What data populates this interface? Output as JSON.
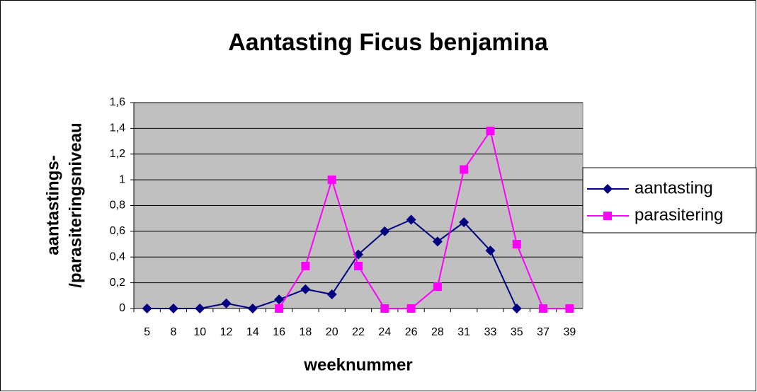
{
  "chart_data": {
    "type": "line",
    "title": "Aantasting Ficus benjamina",
    "x_label": "weeknummer",
    "y_label": [
      "aantastings-",
      "/parasiteringsniveau"
    ],
    "categories": [
      "5",
      "8",
      "10",
      "12",
      "14",
      "16",
      "18",
      "20",
      "22",
      "24",
      "26",
      "28",
      "31",
      "33",
      "35",
      "37",
      "39"
    ],
    "series": [
      {
        "name": "aantasting",
        "color": "#000080",
        "marker": "diamond",
        "values": [
          0,
          0,
          0,
          0.04,
          0,
          0.07,
          0.15,
          0.11,
          0.42,
          0.6,
          0.69,
          0.52,
          0.67,
          0.45,
          0,
          null,
          null
        ]
      },
      {
        "name": "parasitering",
        "color": "#ff00ff",
        "marker": "square",
        "values": [
          null,
          null,
          null,
          null,
          null,
          0,
          0.33,
          1.0,
          0.33,
          0,
          0,
          0.17,
          1.08,
          1.38,
          0.5,
          0,
          0
        ]
      }
    ],
    "ylim": [
      0,
      1.6
    ],
    "yticks": [
      0,
      {
        "value": 0.2,
        "label": "0,2"
      },
      {
        "value": 0.4,
        "label": "0,4"
      },
      {
        "value": 0.6,
        "label": "0,6"
      },
      {
        "value": 0.8,
        "label": "0,8"
      },
      1,
      {
        "value": 1.2,
        "label": "1,2"
      },
      {
        "value": 1.4,
        "label": "1,4"
      },
      {
        "value": 1.6,
        "label": "1,6"
      }
    ],
    "grid": true,
    "legend": "right",
    "plot_background": "#c0c0c0"
  }
}
